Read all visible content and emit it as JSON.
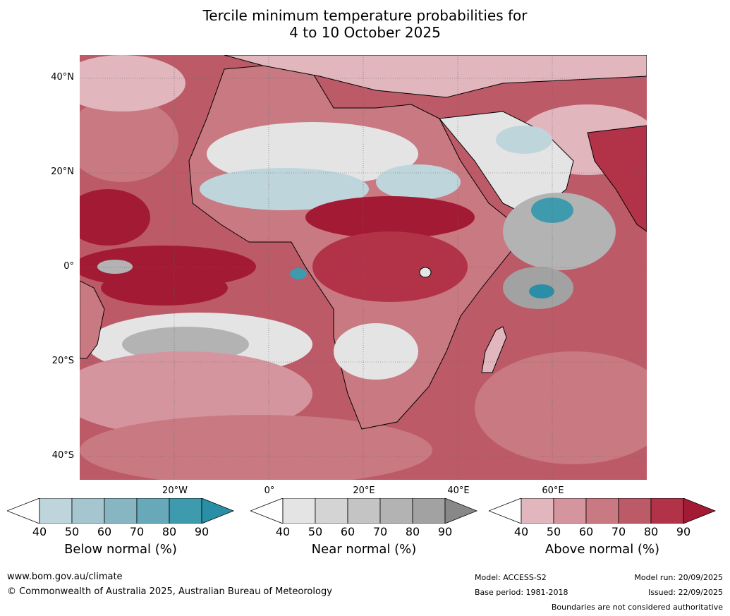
{
  "title_line1": "Tercile minimum temperature probabilities for",
  "title_line2": "4 to 10 October 2025",
  "lat_labels": [
    "40°N",
    "20°N",
    "0°",
    "20°S",
    "40°S"
  ],
  "lon_labels": [
    "20°W",
    "0°",
    "20°E",
    "40°E",
    "60°E"
  ],
  "colorbars": [
    {
      "name": "Below normal (%)",
      "ticks": [
        "40",
        "50",
        "60",
        "70",
        "80",
        "90"
      ],
      "colors": [
        "#bfd5dc",
        "#a5c6ce",
        "#87b6c2",
        "#67a9b8",
        "#3e9aad",
        "#2a8fa6"
      ]
    },
    {
      "name": "Near normal (%)",
      "ticks": [
        "40",
        "50",
        "60",
        "70",
        "80",
        "90"
      ],
      "colors": [
        "#e4e4e4",
        "#d4d4d4",
        "#c4c4c4",
        "#b3b3b3",
        "#a2a2a2",
        "#888888"
      ]
    },
    {
      "name": "Above normal (%)",
      "ticks": [
        "40",
        "50",
        "60",
        "70",
        "80",
        "90"
      ],
      "colors": [
        "#e1b6bd",
        "#d5959f",
        "#c97982",
        "#bc5a68",
        "#b23348",
        "#a31a34"
      ]
    }
  ],
  "footer": {
    "website": "www.bom.gov.au/climate",
    "copyright": "© Commonwealth of Australia 2025, Australian Bureau of Meteorology",
    "model": "Model: ACCESS-S2",
    "base_period": "Base period: 1981-2018",
    "model_run": "Model run: 20/09/2025",
    "issued": "Issued: 22/09/2025",
    "disclaimer": "Boundaries are not considered authoritative"
  }
}
